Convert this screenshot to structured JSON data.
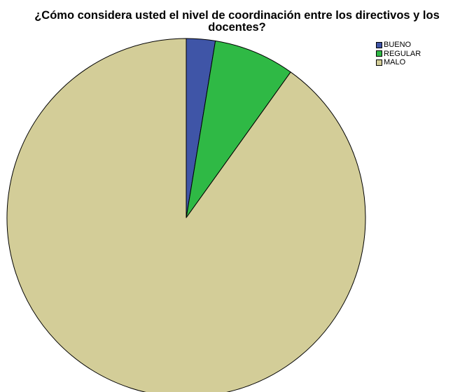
{
  "chart_data": {
    "type": "pie",
    "title_lines": [
      "¿Cómo considera usted el nivel de coordinación entre los directivos y los",
      "docentes?"
    ],
    "categories": [
      "BUENO",
      "REGULAR",
      "MALO"
    ],
    "values": [
      2.6,
      7.3,
      90.1
    ],
    "colors": [
      "#3f55a7",
      "#2fb945",
      "#d3cd98"
    ],
    "legend_position": "top-right",
    "start_angle_deg": 0,
    "direction": "clockwise"
  }
}
